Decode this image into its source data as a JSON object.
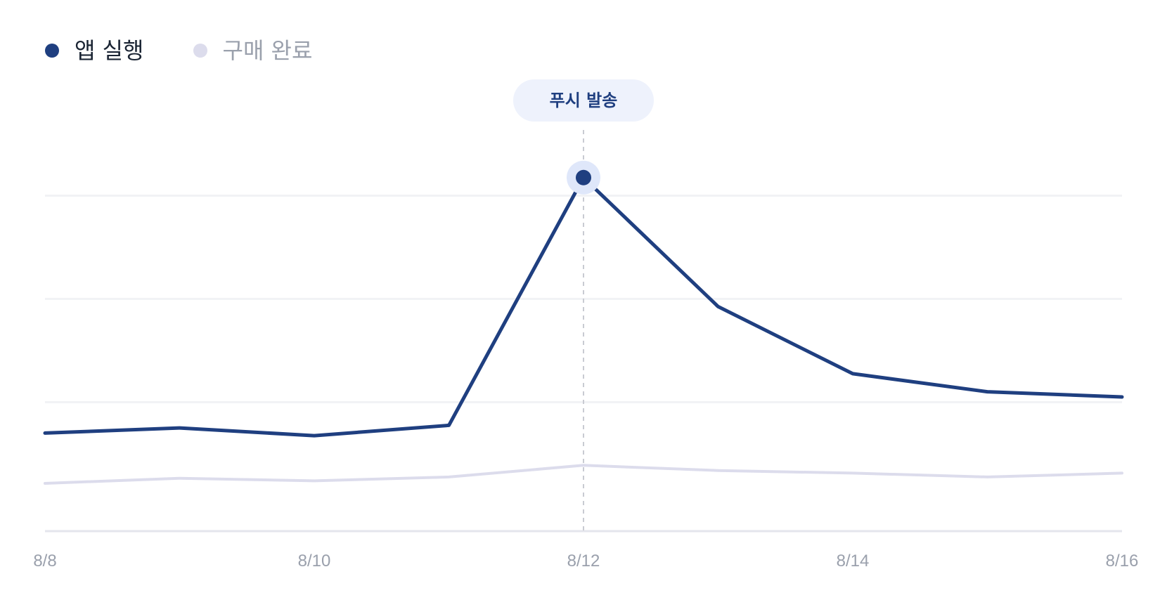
{
  "chart_data": {
    "type": "line",
    "x": [
      "8/8",
      "8/9",
      "8/10",
      "8/11",
      "8/12",
      "8/13",
      "8/14",
      "8/15",
      "8/16"
    ],
    "x_tick_labels": [
      "8/8",
      "8/10",
      "8/12",
      "8/14",
      "8/16"
    ],
    "series": [
      {
        "name": "앱 실행",
        "color": "#1f3f80",
        "values": [
          38,
          40,
          37,
          41,
          137,
          87,
          61,
          54,
          52
        ]
      },
      {
        "name": "구매 완료",
        "color": "#dcdcec",
        "values": [
          18.5,
          20.5,
          19.5,
          21,
          25.5,
          23.5,
          22.5,
          21,
          22.5
        ]
      }
    ],
    "ylim": [
      0,
      150
    ],
    "y_gridlines": [
      50,
      90,
      130
    ],
    "grid": true,
    "legend": "top-left",
    "annotation": {
      "x": "8/12",
      "label": "푸시 발송",
      "series": "앱 실행"
    },
    "colors": {
      "grid": "#f1f2f5",
      "axis": "#e4e5ec",
      "marker_line": "#c9cbd2",
      "annotation_bg": "#eef2fc",
      "highlight_halo": "#dfe7fa"
    }
  }
}
